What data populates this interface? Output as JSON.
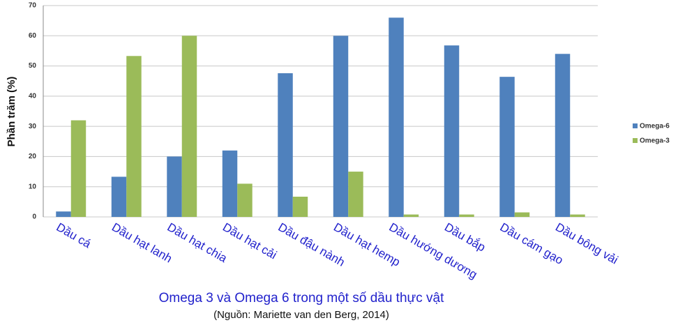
{
  "chart_data": {
    "type": "bar",
    "title": "Omega 3 và Omega 6 trong một số dầu thực vật",
    "subtitle": "(Nguồn: Mariette van den Berg, 2014)",
    "y_label": "Phần trăm (%)",
    "categories": [
      "Dầu cá",
      "Dầu hạt lanh",
      "Dầu hạt chia",
      "Dầu hạt cải",
      "Dầu đậu nành",
      "Dầu hạt hemp",
      "Dầu hướng dương",
      "Dầu bắp",
      "Dầu cám gạo",
      "Dầu bông vải"
    ],
    "series": [
      {
        "name": "Omega-6",
        "color": "#4f81bd",
        "values": [
          1.8,
          13.3,
          20,
          22,
          47.6,
          60,
          66,
          56.8,
          46.4,
          54
        ]
      },
      {
        "name": "Omega-3",
        "color": "#9bbb59",
        "values": [
          32,
          53.3,
          60,
          11,
          6.7,
          15,
          0.8,
          0.8,
          1.5,
          0.8
        ]
      }
    ],
    "ylim": [
      0,
      70
    ],
    "yticks": [
      0,
      10,
      20,
      30,
      40,
      50,
      60,
      70
    ],
    "grid": true,
    "legend_position": "right"
  }
}
